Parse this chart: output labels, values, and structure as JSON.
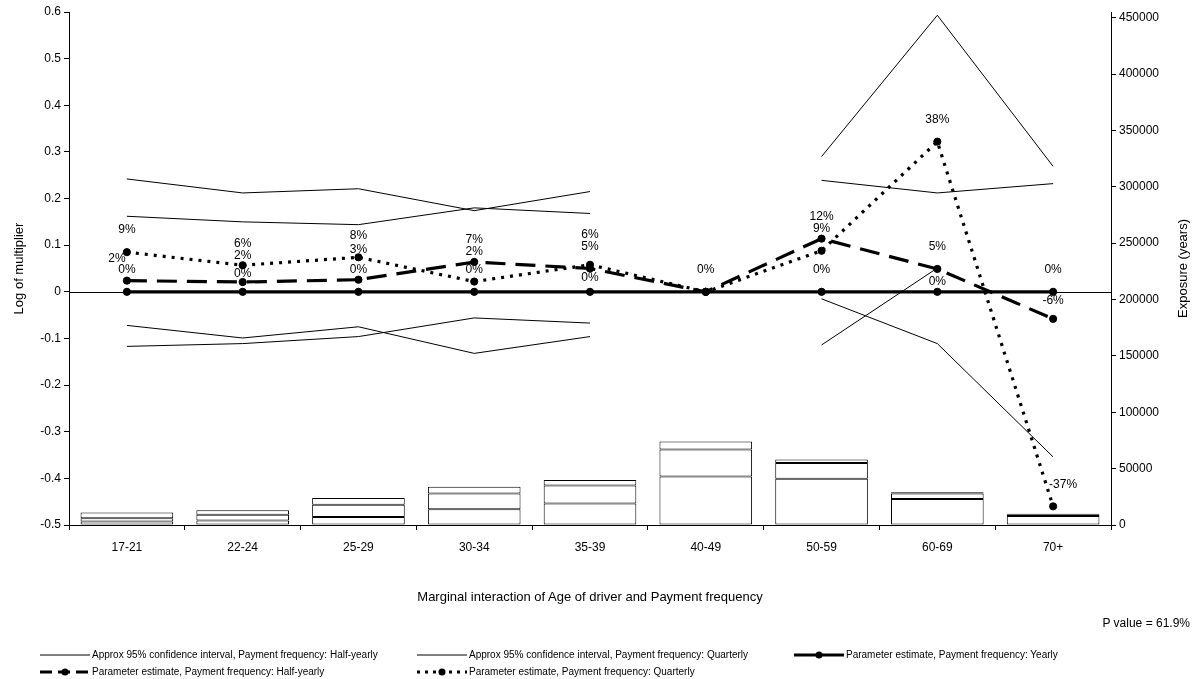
{
  "chart_data": {
    "type": "line",
    "categories": [
      "17-21",
      "22-24",
      "25-29",
      "30-34",
      "35-39",
      "40-49",
      "50-59",
      "60-69",
      "70+"
    ],
    "xlabel": "Marginal interaction of Age of driver and Payment frequency",
    "ylabel": "Log of multiplier",
    "y2label": "Exposure (years)",
    "ylim": [
      -0.5,
      0.6
    ],
    "yticks": [
      -0.5,
      -0.4,
      -0.3,
      -0.2,
      -0.1,
      0,
      0.1,
      0.2,
      0.3,
      0.4,
      0.5,
      0.6
    ],
    "y2lim": [
      0,
      455000
    ],
    "y2ticks": [
      0,
      50000,
      100000,
      150000,
      200000,
      250000,
      300000,
      350000,
      400000,
      450000
    ],
    "stacked": true,
    "marker": "circle",
    "line_style": "solid",
    "legend": "bottom",
    "ref_lines": [
      {
        "axis": "y",
        "value": 0
      }
    ],
    "annotations": [
      {
        "text": "0%",
        "x": "17-21",
        "y": 0
      },
      {
        "text": "2%",
        "x": "17-21",
        "y": 0.024
      },
      {
        "text": "9%",
        "x": "17-21",
        "y": 0.085
      },
      {
        "text": "0%",
        "x": "22-24",
        "y": 0
      },
      {
        "text": "2%",
        "x": "22-24",
        "y": 0.021
      },
      {
        "text": "6%",
        "x": "22-24",
        "y": 0.057
      },
      {
        "text": "0%",
        "x": "25-29",
        "y": 0
      },
      {
        "text": "3%",
        "x": "25-29",
        "y": 0.026
      },
      {
        "text": "8%",
        "x": "25-29",
        "y": 0.074
      },
      {
        "text": "0%",
        "x": "30-34",
        "y": 0
      },
      {
        "text": "7%",
        "x": "30-34",
        "y": 0.064
      },
      {
        "text": "2%",
        "x": "30-34",
        "y": 0.022
      },
      {
        "text": "0%",
        "x": "35-39",
        "y": 0
      },
      {
        "text": "5%",
        "x": "35-39",
        "y": 0.05
      },
      {
        "text": "6%",
        "x": "35-39",
        "y": 0.058
      },
      {
        "text": "0%",
        "x": "40-49",
        "y": 0
      },
      {
        "text": "0%",
        "x": "50-59",
        "y": 0
      },
      {
        "text": "12%",
        "x": "50-59",
        "y": 0.114
      },
      {
        "text": "9%",
        "x": "50-59",
        "y": 0.088
      },
      {
        "text": "0%",
        "x": "60-69",
        "y": 0
      },
      {
        "text": "5%",
        "x": "60-69",
        "y": 0.049
      },
      {
        "text": "38%",
        "x": "60-69",
        "y": 0.322
      },
      {
        "text": "0%",
        "x": "70+",
        "y": 0
      },
      {
        "text": "-6%",
        "x": "70+",
        "y": -0.058
      },
      {
        "text": "-37%",
        "x": "70+",
        "y": -0.46
      },
      "P value = 61.9%"
    ],
    "series": [
      {
        "type": "bar",
        "axis": "y2",
        "color": "#ffffff",
        "values": [
          3000,
          4000,
          7000,
          14000,
          19000,
          43000,
          41000,
          23000,
          8000
        ]
      },
      {
        "type": "bar",
        "axis": "y2",
        "colors": [
          "#ffffff",
          "#ffffff",
          "#ffffff",
          "#ffffff",
          "#ffffff",
          "#ffffff",
          "#ffffff",
          "#ffffff",
          "#000000"
        ],
        "values": [
          3000,
          5000,
          11000,
          14000,
          16000,
          24000,
          14000,
          5000,
          1000
        ]
      },
      {
        "type": "bar",
        "axis": "y2",
        "colors": [
          "#ffffff",
          "#ffffff",
          "#ffffff",
          "#ffffff",
          "#ffffff",
          "#ffffff",
          "#ffffff",
          "#000000",
          "#000000"
        ],
        "values": [
          5000,
          4000,
          6000,
          6000,
          5000,
          7000,
          3000,
          1000,
          1000
        ]
      },
      {
        "name": "Approx 95% confidence interval, Payment frequency: Half-yearly",
        "color": "#000000",
        "marker": "none",
        "values": [
          0.162,
          0.15,
          0.144,
          0.18,
          0.168,
          null,
          0.239,
          0.212,
          0.232
        ]
      },
      {
        "color": "#000000",
        "marker": "none",
        "values": [
          -0.117,
          -0.111,
          -0.096,
          -0.056,
          -0.067,
          null,
          -0.015,
          -0.111,
          -0.354
        ]
      },
      {
        "name": "Approx 95% confidence interval, Payment frequency: Quarterly",
        "color": "#000000",
        "marker": "none",
        "values": [
          0.242,
          0.212,
          0.221,
          0.174,
          0.215,
          null,
          0.29,
          0.593,
          0.269
        ]
      },
      {
        "color": "#000000",
        "marker": "none",
        "values": [
          -0.072,
          -0.099,
          -0.075,
          -0.132,
          -0.096,
          null,
          -0.114,
          0.051,
          null
        ]
      },
      {
        "name": "Parameter estimate, Payment frequency: Yearly",
        "color": "#000000",
        "values": [
          0,
          0,
          0,
          0,
          0,
          0,
          0,
          0,
          0
        ]
      },
      {
        "name": "Parameter estimate, Payment frequency: Half-yearly",
        "color": "#000000",
        "line_style": "dashed",
        "values": [
          0.024,
          0.021,
          0.026,
          0.064,
          0.05,
          0,
          0.114,
          0.049,
          -0.058
        ]
      },
      {
        "name": "Parameter estimate, Payment frequency: Quarterly",
        "color": "#000000",
        "line_style": "dotted",
        "values": [
          0.085,
          0.057,
          0.074,
          0.022,
          0.058,
          0,
          0.088,
          0.322,
          -0.46
        ]
      }
    ]
  }
}
